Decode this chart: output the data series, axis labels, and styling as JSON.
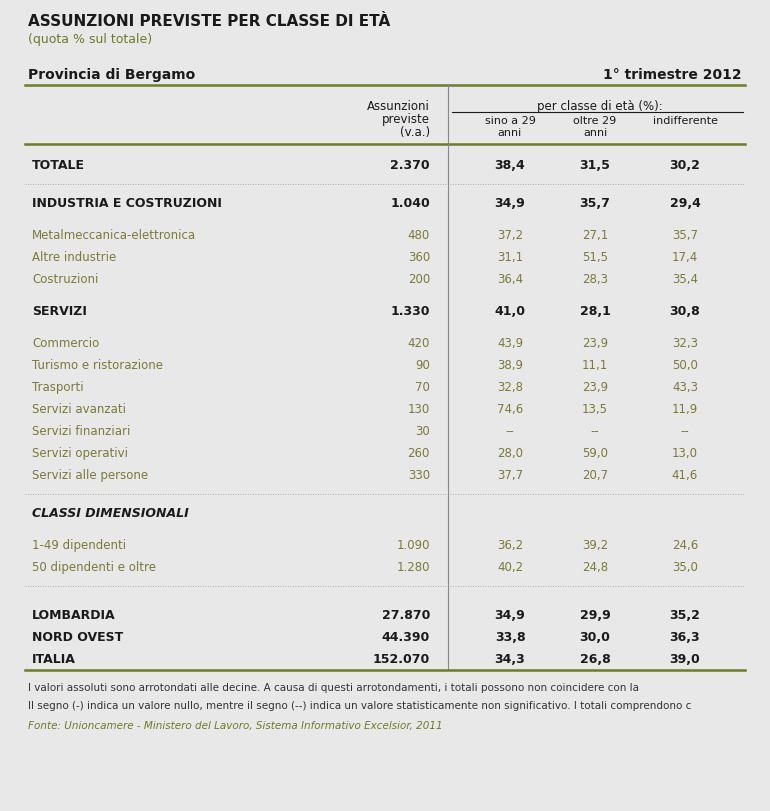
{
  "title": "ASSUNZIONI PREVISTE PER CLASSE DI ETÀ",
  "subtitle": "(quota % sul totale)",
  "location": "Provincia di Bergamo",
  "period": "1° trimestre 2012",
  "bg_color": "#e8e8e8",
  "header_line_color": "#6b7c2a",
  "sub_color": "#7a7a3a",
  "rows": [
    {
      "label": "TOTALE",
      "bold": true,
      "italic": false,
      "sub": false,
      "values": [
        "2.370",
        "38,4",
        "31,5",
        "30,2"
      ],
      "pre_space": 1,
      "post_space": 1
    },
    {
      "label": "INDUSTRIA E COSTRUZIONI",
      "bold": true,
      "italic": false,
      "sub": false,
      "values": [
        "1.040",
        "34,9",
        "35,7",
        "29,4"
      ],
      "pre_space": 0,
      "post_space": 0
    },
    {
      "label": "Metalmeccanica-elettronica",
      "bold": false,
      "italic": false,
      "sub": true,
      "values": [
        "480",
        "37,2",
        "27,1",
        "35,7"
      ],
      "pre_space": 1,
      "post_space": 0
    },
    {
      "label": "Altre industrie",
      "bold": false,
      "italic": false,
      "sub": true,
      "values": [
        "360",
        "31,1",
        "51,5",
        "17,4"
      ],
      "pre_space": 0,
      "post_space": 0
    },
    {
      "label": "Costruzioni",
      "bold": false,
      "italic": false,
      "sub": true,
      "values": [
        "200",
        "36,4",
        "28,3",
        "35,4"
      ],
      "pre_space": 0,
      "post_space": 0
    },
    {
      "label": "SERVIZI",
      "bold": true,
      "italic": false,
      "sub": false,
      "values": [
        "1.330",
        "41,0",
        "28,1",
        "30,8"
      ],
      "pre_space": 1,
      "post_space": 0
    },
    {
      "label": "Commercio",
      "bold": false,
      "italic": false,
      "sub": true,
      "values": [
        "420",
        "43,9",
        "23,9",
        "32,3"
      ],
      "pre_space": 1,
      "post_space": 0
    },
    {
      "label": "Turismo e ristorazione",
      "bold": false,
      "italic": false,
      "sub": true,
      "values": [
        "90",
        "38,9",
        "11,1",
        "50,0"
      ],
      "pre_space": 0,
      "post_space": 0
    },
    {
      "label": "Trasporti",
      "bold": false,
      "italic": false,
      "sub": true,
      "values": [
        "70",
        "32,8",
        "23,9",
        "43,3"
      ],
      "pre_space": 0,
      "post_space": 0
    },
    {
      "label": "Servizi avanzati",
      "bold": false,
      "italic": false,
      "sub": true,
      "values": [
        "130",
        "74,6",
        "13,5",
        "11,9"
      ],
      "pre_space": 0,
      "post_space": 0
    },
    {
      "label": "Servizi finanziari",
      "bold": false,
      "italic": false,
      "sub": true,
      "values": [
        "30",
        "--",
        "--",
        "--"
      ],
      "pre_space": 0,
      "post_space": 0
    },
    {
      "label": "Servizi operativi",
      "bold": false,
      "italic": false,
      "sub": true,
      "values": [
        "260",
        "28,0",
        "59,0",
        "13,0"
      ],
      "pre_space": 0,
      "post_space": 0
    },
    {
      "label": "Servizi alle persone",
      "bold": false,
      "italic": false,
      "sub": true,
      "values": [
        "330",
        "37,7",
        "20,7",
        "41,6"
      ],
      "pre_space": 0,
      "post_space": 1
    },
    {
      "label": "CLASSI DIMENSIONALI",
      "bold": true,
      "italic": true,
      "sub": false,
      "values": [
        "",
        "",
        "",
        ""
      ],
      "pre_space": 0,
      "post_space": 0
    },
    {
      "label": "1-49 dipendenti",
      "bold": false,
      "italic": false,
      "sub": true,
      "values": [
        "1.090",
        "36,2",
        "39,2",
        "24,6"
      ],
      "pre_space": 1,
      "post_space": 0
    },
    {
      "label": "50 dipendenti e oltre",
      "bold": false,
      "italic": false,
      "sub": true,
      "values": [
        "1.280",
        "40,2",
        "24,8",
        "35,0"
      ],
      "pre_space": 0,
      "post_space": 1
    },
    {
      "label": "LOMBARDIA",
      "bold": true,
      "italic": false,
      "sub": false,
      "values": [
        "27.870",
        "34,9",
        "29,9",
        "35,2"
      ],
      "pre_space": 1,
      "post_space": 0
    },
    {
      "label": "NORD OVEST",
      "bold": true,
      "italic": false,
      "sub": false,
      "values": [
        "44.390",
        "33,8",
        "30,0",
        "36,3"
      ],
      "pre_space": 0,
      "post_space": 0
    },
    {
      "label": "ITALIA",
      "bold": true,
      "italic": false,
      "sub": false,
      "values": [
        "152.070",
        "34,3",
        "26,8",
        "39,0"
      ],
      "pre_space": 0,
      "post_space": 0
    }
  ],
  "footnotes": [
    "I valori assoluti sono arrotondati alle decine. A causa di questi arrotondamenti, i totali possono non coincidere con la",
    "Il segno (-) indica un valore nullo, mentre il segno (--) indica un valore statisticamente non significativo. I totali comprendono c"
  ],
  "source": "Fonte: Unioncamere - Ministero del Lavoro, Sistema Informativo Excelsior, 2011"
}
